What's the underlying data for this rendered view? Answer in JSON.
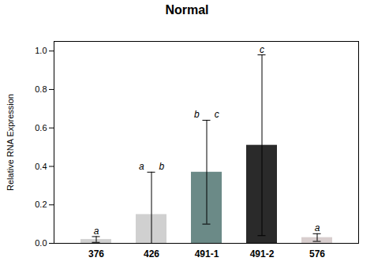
{
  "chart_data": {
    "type": "bar",
    "title": "Normal",
    "ylabel": "Relative RNA Expression",
    "categories": [
      "376",
      "426",
      "491-1",
      "491-2",
      "576"
    ],
    "values": [
      0.02,
      0.15,
      0.37,
      0.51,
      0.03
    ],
    "errors": [
      0.015,
      0.22,
      0.27,
      0.47,
      0.02
    ],
    "colors": [
      "#d0d0d0",
      "#d0d0d0",
      "#6b8a87",
      "#2a2a2a",
      "#d8cece"
    ],
    "sig_labels": [
      [
        "a"
      ],
      [
        "a",
        "b"
      ],
      [
        "b",
        "c"
      ],
      [
        "c"
      ],
      [
        "a"
      ]
    ],
    "ylim": [
      0,
      1.05
    ],
    "yticks": [
      {
        "value": 0,
        "label": "0.0"
      },
      0.2,
      0.4,
      0.6,
      0.8,
      {
        "value": 1,
        "label": "1.0"
      }
    ],
    "grid": false
  }
}
